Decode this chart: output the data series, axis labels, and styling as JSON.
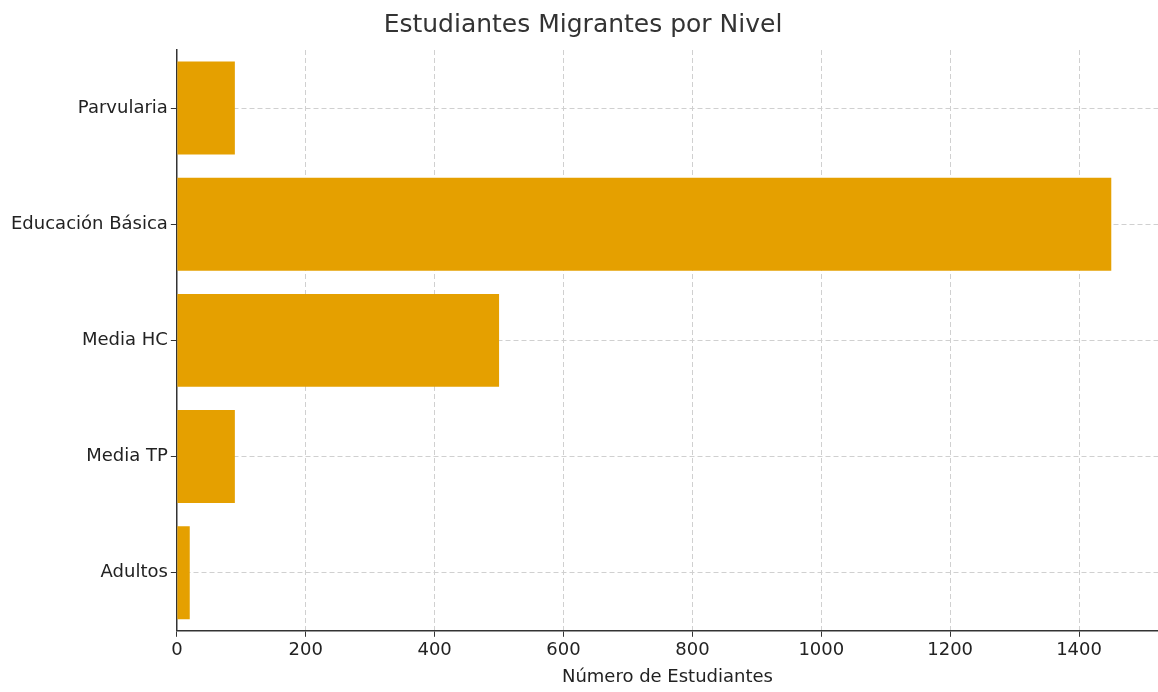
{
  "chart_data": {
    "type": "bar",
    "orientation": "horizontal",
    "title": "Estudiantes Migrantes por Nivel",
    "xlabel": "Número de Estudiantes",
    "categories": [
      "Parvularia",
      "Educación Básica",
      "Media HC",
      "Media TP",
      "Adultos"
    ],
    "values": [
      90,
      1450,
      500,
      90,
      20
    ],
    "color": "#e5a000",
    "xlim": [
      0,
      1522.5
    ],
    "xticks": [
      0,
      200,
      400,
      600,
      800,
      1000,
      1200,
      1400
    ],
    "grid": true
  }
}
